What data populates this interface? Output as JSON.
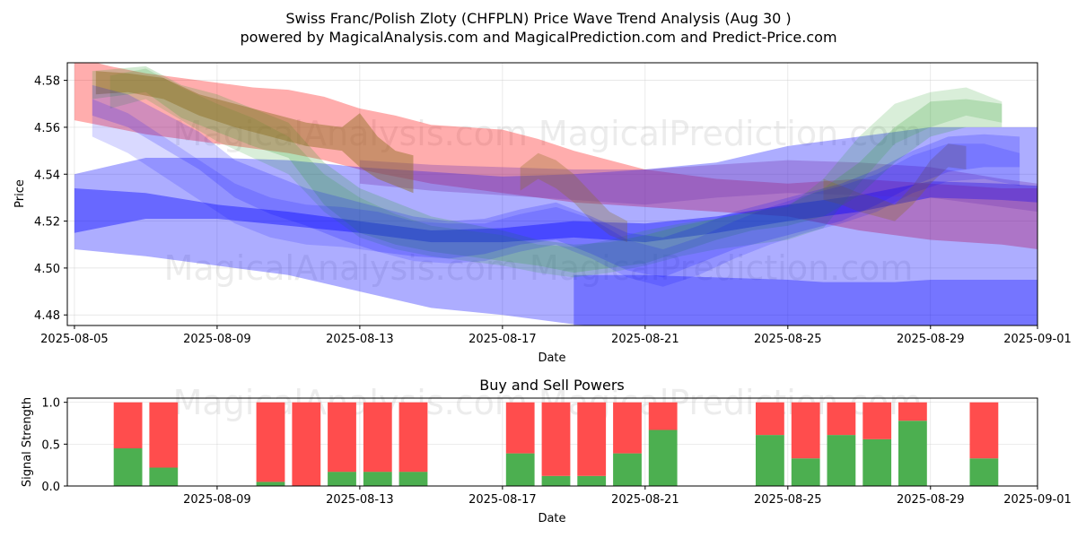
{
  "header": {
    "title": "Swiss Franc/Polish Zloty (CHFPLN) Price Wave Trend Analysis (Aug 30 )",
    "subtitle": "powered by MagicalAnalysis.com and MagicalPrediction.com and Predict-Price.com"
  },
  "watermark": "MagicalAnalysis.com   MagicalPrediction.com",
  "colors": {
    "red_band": "#ff0000",
    "blue_band": "#0000ff",
    "green_band": "#2ca02c",
    "brown_band": "#8c6d1f",
    "purple_band": "#7b3fb5",
    "buy_bar": "#4caf50",
    "sell_bar": "#ff4d4d"
  },
  "chart_data": [
    {
      "type": "area",
      "title": "",
      "xlabel": "Date",
      "ylabel": "Price",
      "xlim_days": [
        -0.2,
        27
      ],
      "ylim": [
        4.4755,
        4.5875
      ],
      "x_ticks": [
        "2025-08-05",
        "2025-08-09",
        "2025-08-13",
        "2025-08-17",
        "2025-08-21",
        "2025-08-25",
        "2025-08-29",
        "2025-09-01"
      ],
      "x_tick_days": [
        0,
        4,
        8,
        12,
        16,
        20,
        24,
        27
      ],
      "y_ticks": [
        "4.48",
        "4.50",
        "4.52",
        "4.54",
        "4.56",
        "4.58"
      ],
      "y_tick_values": [
        4.48,
        4.5,
        4.52,
        4.54,
        4.56,
        4.58
      ],
      "grid": true,
      "series": [
        {
          "name": "red-band",
          "color": "red_band",
          "opacity": 0.32,
          "x": [
            0,
            1,
            2,
            3,
            4,
            5,
            6,
            7,
            8,
            9,
            10,
            11,
            12,
            13,
            14,
            15,
            16,
            17,
            18,
            19,
            20,
            21,
            22,
            23,
            24,
            25,
            26,
            27
          ],
          "upper": [
            4.59,
            4.586,
            4.583,
            4.581,
            4.579,
            4.577,
            4.576,
            4.573,
            4.568,
            4.565,
            4.561,
            4.56,
            4.559,
            4.555,
            4.55,
            4.546,
            4.542,
            4.54,
            4.538,
            4.537,
            4.536,
            4.537,
            4.538,
            4.537,
            4.536,
            4.535,
            4.534,
            4.534
          ],
          "lower": [
            4.563,
            4.56,
            4.557,
            4.555,
            4.553,
            4.551,
            4.549,
            4.546,
            4.542,
            4.539,
            4.536,
            4.534,
            4.532,
            4.53,
            4.528,
            4.527,
            4.526,
            4.525,
            4.524,
            4.523,
            4.522,
            4.519,
            4.516,
            4.514,
            4.512,
            4.511,
            4.51,
            4.508
          ]
        },
        {
          "name": "blue-wide-band",
          "color": "blue_band",
          "opacity": 0.32,
          "x": [
            0,
            2,
            4,
            6,
            8,
            10,
            12,
            14,
            16,
            18,
            20,
            22,
            24,
            26,
            27
          ],
          "upper": [
            4.54,
            4.547,
            4.547,
            4.546,
            4.543,
            4.541,
            4.539,
            4.54,
            4.542,
            4.545,
            4.552,
            4.556,
            4.56,
            4.56,
            4.56
          ],
          "lower": [
            4.508,
            4.505,
            4.501,
            4.497,
            4.49,
            4.483,
            4.48,
            4.476,
            4.474,
            4.472,
            4.471,
            4.47,
            4.47,
            4.47,
            4.47
          ]
        },
        {
          "name": "blue-bottom-band",
          "color": "blue_band",
          "opacity": 0.32,
          "x": [
            14,
            16,
            18,
            20,
            21,
            22,
            23,
            24,
            25,
            26,
            27
          ],
          "upper": [
            4.497,
            4.497,
            4.496,
            4.495,
            4.494,
            4.494,
            4.494,
            4.495,
            4.495,
            4.495,
            4.495
          ],
          "lower": [
            4.474,
            4.474,
            4.474,
            4.474,
            4.474,
            4.474,
            4.474,
            4.474,
            4.474,
            4.474,
            4.474
          ]
        },
        {
          "name": "blue-mid-band",
          "color": "blue_band",
          "opacity": 0.4,
          "x": [
            0,
            2,
            4,
            6,
            8,
            10,
            12,
            14,
            16,
            18,
            20,
            22,
            24,
            26,
            27
          ],
          "upper": [
            4.534,
            4.532,
            4.527,
            4.524,
            4.52,
            4.516,
            4.517,
            4.52,
            4.519,
            4.522,
            4.527,
            4.531,
            4.537,
            4.536,
            4.535
          ],
          "lower": [
            4.515,
            4.521,
            4.521,
            4.518,
            4.515,
            4.511,
            4.511,
            4.513,
            4.511,
            4.515,
            4.52,
            4.524,
            4.53,
            4.529,
            4.528
          ]
        },
        {
          "name": "purple-band",
          "color": "purple_band",
          "opacity": 0.35,
          "x": [
            8,
            10,
            12,
            14,
            16,
            18,
            20,
            22,
            24,
            26,
            27
          ],
          "upper": [
            4.546,
            4.544,
            4.543,
            4.542,
            4.542,
            4.544,
            4.546,
            4.545,
            4.543,
            4.538,
            4.536
          ],
          "lower": [
            4.536,
            4.533,
            4.531,
            4.529,
            4.527,
            4.53,
            4.532,
            4.531,
            4.53,
            4.526,
            4.524
          ]
        },
        {
          "name": "green-wave-1",
          "color": "green_band",
          "opacity": 0.22,
          "x": [
            0.5,
            2,
            3,
            4,
            5,
            6,
            7,
            8,
            9,
            10,
            11,
            12,
            13,
            14,
            15,
            16,
            17,
            18,
            19,
            20,
            21,
            22,
            23,
            24,
            25,
            26
          ],
          "upper": [
            4.584,
            4.586,
            4.578,
            4.574,
            4.568,
            4.562,
            4.545,
            4.534,
            4.528,
            4.522,
            4.519,
            4.516,
            4.512,
            4.51,
            4.511,
            4.514,
            4.518,
            4.521,
            4.524,
            4.527,
            4.534,
            4.545,
            4.56,
            4.571,
            4.572,
            4.57
          ],
          "lower": [
            4.572,
            4.575,
            4.564,
            4.558,
            4.552,
            4.547,
            4.527,
            4.515,
            4.51,
            4.507,
            4.505,
            4.503,
            4.501,
            4.498,
            4.5,
            4.502,
            4.507,
            4.512,
            4.516,
            4.518,
            4.522,
            4.531,
            4.545,
            4.556,
            4.56,
            4.56
          ]
        },
        {
          "name": "green-wave-2",
          "color": "green_band",
          "opacity": 0.18,
          "x": [
            1,
            2,
            3,
            4,
            5,
            6,
            7,
            8,
            9,
            10,
            11,
            12,
            13,
            14,
            15,
            16,
            17,
            18,
            19,
            20,
            21,
            22,
            23,
            24,
            25,
            26
          ],
          "upper": [
            4.582,
            4.585,
            4.577,
            4.57,
            4.564,
            4.556,
            4.54,
            4.53,
            4.523,
            4.518,
            4.516,
            4.514,
            4.51,
            4.509,
            4.512,
            4.516,
            4.519,
            4.521,
            4.524,
            4.526,
            4.538,
            4.556,
            4.57,
            4.575,
            4.577,
            4.571
          ],
          "lower": [
            4.568,
            4.572,
            4.563,
            4.554,
            4.547,
            4.54,
            4.524,
            4.513,
            4.508,
            4.505,
            4.503,
            4.501,
            4.498,
            4.496,
            4.498,
            4.501,
            4.505,
            4.508,
            4.51,
            4.512,
            4.517,
            4.536,
            4.553,
            4.56,
            4.565,
            4.562
          ]
        },
        {
          "name": "brown-wave",
          "color": "brown_band",
          "opacity": 0.45,
          "x": [
            0.6,
            1.5,
            2.5,
            3.5,
            4.5,
            5.5,
            6.5,
            7.5,
            8.0,
            8.5,
            9.0,
            9.5
          ],
          "upper": [
            4.584,
            4.583,
            4.581,
            4.574,
            4.57,
            4.566,
            4.562,
            4.56,
            4.566,
            4.556,
            4.55,
            4.548
          ],
          "lower": [
            4.574,
            4.575,
            4.572,
            4.565,
            4.56,
            4.556,
            4.552,
            4.55,
            4.543,
            4.538,
            4.535,
            4.532
          ]
        },
        {
          "name": "brown-wave-2",
          "color": "brown_band",
          "opacity": 0.3,
          "x": [
            12.5,
            13.0,
            13.5,
            14.0,
            14.5,
            15.0,
            15.5
          ],
          "upper": [
            4.543,
            4.549,
            4.546,
            4.54,
            4.532,
            4.524,
            4.52
          ],
          "lower": [
            4.533,
            4.538,
            4.534,
            4.528,
            4.52,
            4.514,
            4.511
          ]
        },
        {
          "name": "brown-wave-3",
          "color": "brown_band",
          "opacity": 0.3,
          "x": [
            21.0,
            21.5,
            22.0,
            22.5,
            23.0,
            23.5,
            24.0,
            24.5,
            25.0
          ],
          "upper": [
            4.538,
            4.535,
            4.532,
            4.53,
            4.527,
            4.535,
            4.546,
            4.553,
            4.552
          ],
          "lower": [
            4.529,
            4.527,
            4.524,
            4.522,
            4.52,
            4.527,
            4.536,
            4.543,
            4.542
          ]
        },
        {
          "name": "blue-wave-1",
          "color": "blue_band",
          "opacity": 0.18,
          "x": [
            0.5,
            1.5,
            2.5,
            3.5,
            4.5,
            5.5,
            6.5,
            7.5,
            8.5,
            9.5,
            10.5,
            11.5,
            12.5,
            13.5,
            14.5,
            15.5,
            16.5,
            17.5,
            18.5,
            19.5,
            20.5,
            21.5,
            22.5,
            23.5,
            24.5,
            25.5,
            26.5
          ],
          "upper": [
            4.578,
            4.574,
            4.566,
            4.558,
            4.546,
            4.54,
            4.534,
            4.53,
            4.526,
            4.522,
            4.52,
            4.521,
            4.525,
            4.528,
            4.522,
            4.515,
            4.513,
            4.518,
            4.524,
            4.528,
            4.532,
            4.536,
            4.542,
            4.55,
            4.556,
            4.557,
            4.556
          ],
          "lower": [
            4.565,
            4.56,
            4.551,
            4.542,
            4.53,
            4.523,
            4.518,
            4.512,
            4.507,
            4.505,
            4.504,
            4.506,
            4.51,
            4.512,
            4.506,
            4.499,
            4.496,
            4.502,
            4.508,
            4.512,
            4.516,
            4.52,
            4.527,
            4.535,
            4.541,
            4.543,
            4.543
          ]
        },
        {
          "name": "blue-wave-2",
          "color": "blue_band",
          "opacity": 0.15,
          "x": [
            0.5,
            1.5,
            2.5,
            3.5,
            4.5,
            5.5,
            6.5,
            7.5,
            8.5,
            9.5,
            10.5,
            11.5,
            12.5,
            13.5,
            14.5,
            15.5,
            16.5,
            17.5,
            18.5,
            19.5,
            20.5,
            21.5,
            22.5,
            23.5,
            24.5,
            25.5,
            26.5
          ],
          "upper": [
            4.572,
            4.566,
            4.556,
            4.546,
            4.536,
            4.53,
            4.527,
            4.526,
            4.524,
            4.52,
            4.519,
            4.519,
            4.523,
            4.526,
            4.521,
            4.512,
            4.508,
            4.513,
            4.52,
            4.526,
            4.531,
            4.535,
            4.54,
            4.548,
            4.553,
            4.553,
            4.549
          ],
          "lower": [
            4.556,
            4.549,
            4.539,
            4.529,
            4.519,
            4.513,
            4.51,
            4.509,
            4.507,
            4.503,
            4.502,
            4.503,
            4.507,
            4.51,
            4.504,
            4.496,
            4.492,
            4.497,
            4.504,
            4.51,
            4.515,
            4.519,
            4.524,
            4.532,
            4.537,
            4.538,
            4.535
          ]
        }
      ]
    },
    {
      "type": "bar",
      "title": "Buy and Sell Powers",
      "xlabel": "Date",
      "ylabel": "Signal Strength",
      "xlim_days": [
        -0.2,
        27
      ],
      "ylim": [
        0,
        1.05
      ],
      "x_ticks": [
        "2025-08-09",
        "2025-08-13",
        "2025-08-17",
        "2025-08-21",
        "2025-08-25",
        "2025-08-29",
        "2025-09-01"
      ],
      "x_tick_days": [
        4,
        8,
        12,
        16,
        20,
        24,
        27
      ],
      "y_ticks": [
        "0.0",
        "0.5",
        "1.0"
      ],
      "y_tick_values": [
        0,
        0.5,
        1.0
      ],
      "grid": true,
      "bars": [
        {
          "day": 1.5,
          "buy": 0.45,
          "sell": 0.55
        },
        {
          "day": 2.5,
          "buy": 0.22,
          "sell": 0.78
        },
        {
          "day": 5.5,
          "buy": 0.05,
          "sell": 0.95
        },
        {
          "day": 6.5,
          "buy": 0.0,
          "sell": 1.0
        },
        {
          "day": 7.5,
          "buy": 0.17,
          "sell": 0.83
        },
        {
          "day": 8.5,
          "buy": 0.17,
          "sell": 0.83
        },
        {
          "day": 9.5,
          "buy": 0.17,
          "sell": 0.83
        },
        {
          "day": 12.5,
          "buy": 0.39,
          "sell": 0.61
        },
        {
          "day": 13.5,
          "buy": 0.12,
          "sell": 0.88
        },
        {
          "day": 14.5,
          "buy": 0.12,
          "sell": 0.88
        },
        {
          "day": 15.5,
          "buy": 0.39,
          "sell": 0.61
        },
        {
          "day": 16.5,
          "buy": 0.67,
          "sell": 0.33
        },
        {
          "day": 19.5,
          "buy": 0.61,
          "sell": 0.39
        },
        {
          "day": 20.5,
          "buy": 0.33,
          "sell": 0.67
        },
        {
          "day": 21.5,
          "buy": 0.61,
          "sell": 0.39
        },
        {
          "day": 22.5,
          "buy": 0.56,
          "sell": 0.44
        },
        {
          "day": 23.5,
          "buy": 0.78,
          "sell": 0.22
        },
        {
          "day": 25.5,
          "buy": 0.33,
          "sell": 0.67
        }
      ]
    }
  ]
}
